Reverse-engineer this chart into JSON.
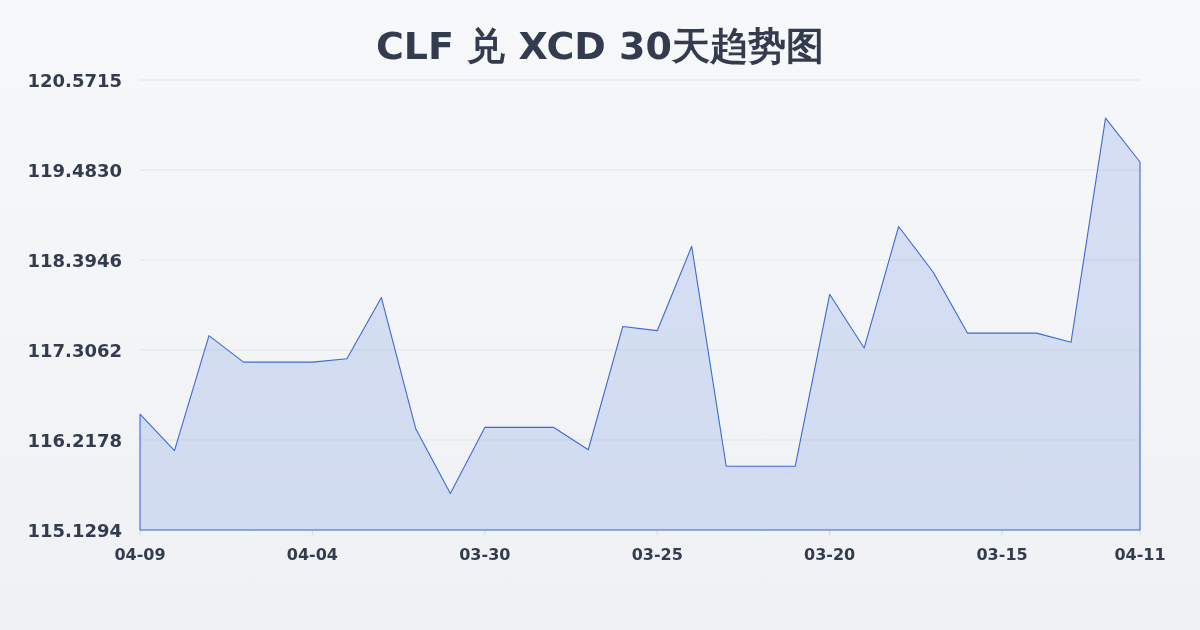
{
  "chart_data": {
    "type": "area",
    "title": "CLF 兑 XCD 30天趋势图",
    "categories": [
      "04-09",
      null,
      null,
      null,
      null,
      "04-04",
      null,
      null,
      null,
      null,
      "03-30",
      null,
      null,
      null,
      null,
      "03-25",
      null,
      null,
      null,
      null,
      "03-20",
      null,
      null,
      null,
      null,
      "03-15",
      null,
      null,
      null,
      "04-11"
    ],
    "series": [
      {
        "color": "#3d6ad4",
        "values": [
          116.53,
          116.09,
          117.48,
          117.16,
          117.16,
          117.16,
          117.2,
          117.94,
          116.35,
          115.57,
          116.37,
          116.37,
          116.37,
          116.1,
          117.59,
          117.54,
          118.56,
          115.9,
          115.9,
          115.9,
          117.98,
          117.33,
          118.8,
          118.25,
          117.51,
          117.51,
          117.51,
          117.4,
          120.11,
          119.58
        ]
      }
    ],
    "ylim": [
      115.1294,
      120.5715
    ],
    "yticks": [
      115.1294,
      116.2178,
      117.3062,
      118.3946,
      {
        "value": 119.483,
        "label": "119.4830"
      },
      120.5715
    ],
    "grid": "y"
  }
}
